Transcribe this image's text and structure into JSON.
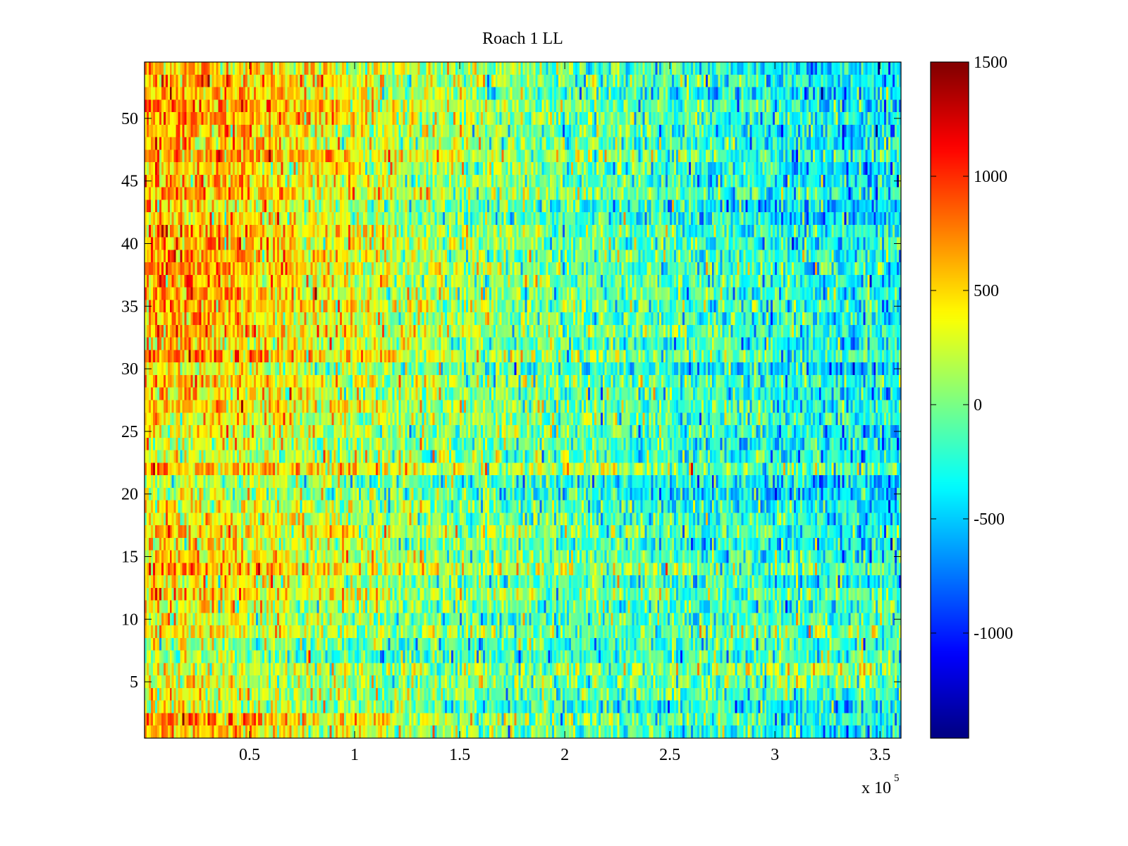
{
  "chart_data": {
    "type": "heatmap",
    "title": "Roach 1 LL",
    "xlabel": "",
    "ylabel": "",
    "x_multiplier_label": "x 10",
    "x_multiplier_exponent": "5",
    "xlim": [
      0,
      3.6
    ],
    "ylim": [
      0.5,
      54.5
    ],
    "rows": 54,
    "x_ticks": [
      0.5,
      1,
      1.5,
      2,
      2.5,
      3,
      3.5
    ],
    "x_tick_labels": [
      "0.5",
      "1",
      "1.5",
      "2",
      "2.5",
      "3",
      "3.5"
    ],
    "y_ticks": [
      5,
      10,
      15,
      20,
      25,
      30,
      35,
      40,
      45,
      50
    ],
    "y_tick_labels": [
      "5",
      "10",
      "15",
      "20",
      "25",
      "30",
      "35",
      "40",
      "45",
      "50"
    ],
    "colormap": "jet",
    "clim": [
      -1460,
      1500
    ],
    "colorbar_ticks": [
      1500,
      1000,
      500,
      0,
      -500,
      -1000
    ],
    "colorbar_tick_labels": [
      "1500",
      "1000",
      "500",
      "0",
      "-500",
      "-1000"
    ],
    "approx_mean_grid": {
      "x_band_centers": [
        0.2,
        0.7,
        1.2,
        1.7,
        2.2,
        2.7,
        3.1,
        3.5
      ],
      "row_band_centers": [
        2,
        6,
        14,
        23,
        32,
        41,
        50
      ],
      "values": [
        [
          600,
          350,
          150,
          0,
          -150,
          -250,
          -350,
          -450
        ],
        [
          150,
          50,
          -50,
          -50,
          -100,
          -50,
          0,
          50
        ],
        [
          550,
          350,
          150,
          0,
          -100,
          -200,
          -250,
          -300
        ],
        [
          350,
          250,
          100,
          0,
          -100,
          -200,
          -250,
          -300
        ],
        [
          600,
          400,
          200,
          50,
          -100,
          -200,
          -300,
          -350
        ],
        [
          650,
          450,
          200,
          50,
          -100,
          -200,
          -300,
          -350
        ],
        [
          650,
          450,
          200,
          50,
          -100,
          -250,
          -350,
          -400
        ]
      ],
      "noise_std": 280
    }
  }
}
